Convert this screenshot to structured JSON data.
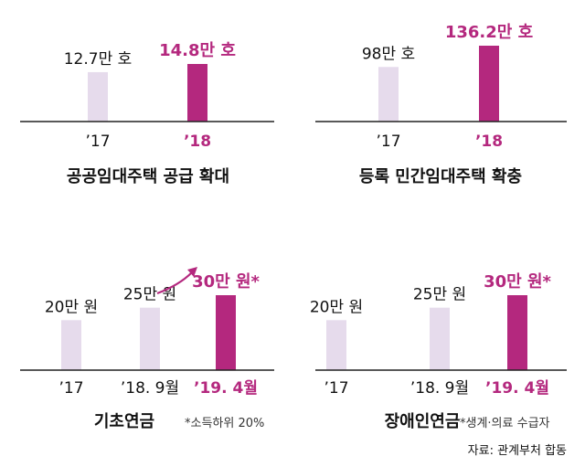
{
  "colors": {
    "highlight": "#b4287e",
    "light_bar": "#e6dbec",
    "axis": "#222222"
  },
  "chart_data": [
    {
      "type": "bar",
      "title": "공공임대주택 공급 확대",
      "categories": [
        "’17",
        "’18"
      ],
      "values": [
        12.7,
        14.8
      ],
      "value_labels": [
        "12.7만 호",
        "14.8만 호"
      ],
      "unit": "만 호"
    },
    {
      "type": "bar",
      "title": "등록 민간임대주택 확충",
      "categories": [
        "’17",
        "’18"
      ],
      "values": [
        98,
        136.2
      ],
      "value_labels": [
        "98만 호",
        "136.2만 호"
      ],
      "unit": "만 호"
    },
    {
      "type": "bar",
      "title": "기초연금",
      "note": "*소득하위 20%",
      "categories": [
        "’17",
        "’18. 9월",
        "’19. 4월"
      ],
      "values": [
        20,
        25,
        30
      ],
      "value_labels": [
        "20만 원",
        "25만 원",
        "30만 원*"
      ],
      "unit": "만 원"
    },
    {
      "type": "bar",
      "title": "장애인연금",
      "note": "*생계·의료 수급자",
      "categories": [
        "’17",
        "’18. 9월",
        "’19. 4월"
      ],
      "values": [
        20,
        25,
        30
      ],
      "value_labels": [
        "20만 원",
        "25만 원",
        "30만 원*"
      ],
      "unit": "만 원"
    }
  ],
  "source": "자료: 관계부처 합동"
}
